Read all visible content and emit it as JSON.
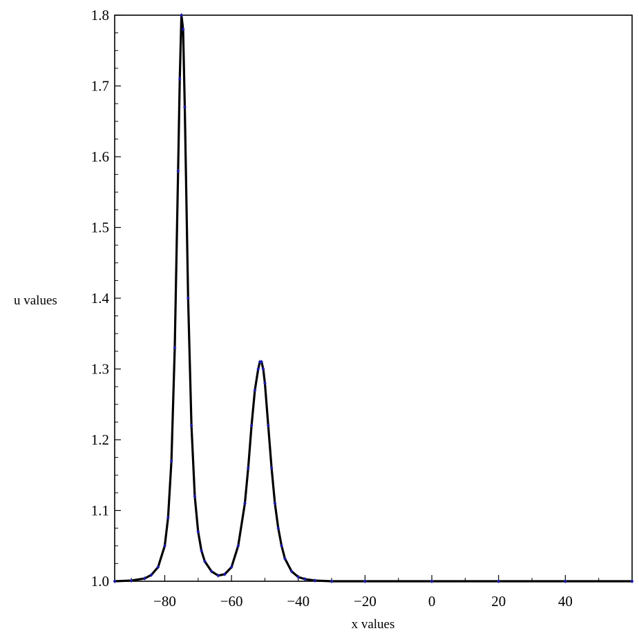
{
  "chart_data": {
    "type": "line",
    "title": "",
    "xlabel": "x values",
    "ylabel": "u values",
    "xlim": [
      -95,
      60
    ],
    "ylim": [
      1.0,
      1.8
    ],
    "x_ticks": [
      -80,
      -60,
      -40,
      -20,
      0,
      20,
      40
    ],
    "x_tick_labels": [
      "−80",
      "−60",
      "−40",
      "−20",
      "0",
      "20",
      "40"
    ],
    "y_ticks": [
      1.0,
      1.1,
      1.2,
      1.3,
      1.4,
      1.5,
      1.6,
      1.7,
      1.8
    ],
    "y_tick_labels": [
      "1.0",
      "1.1",
      "1.2",
      "1.3",
      "1.4",
      "1.5",
      "1.6",
      "1.7",
      "1.8"
    ],
    "grid": false,
    "legend": "none",
    "series": [
      {
        "style": "line",
        "color": "#000000",
        "x": [
          -95,
          -90,
          -86,
          -84,
          -82,
          -80,
          -79,
          -78,
          -77,
          -76,
          -75.5,
          -75,
          -74.5,
          -74,
          -73,
          -72,
          -71,
          -70,
          -69,
          -68,
          -66,
          -64,
          -62,
          -60,
          -58,
          -56,
          -55,
          -54,
          -53,
          -52,
          -51.5,
          -51,
          -50.5,
          -50,
          -49,
          -48,
          -47,
          -46,
          -45,
          -44,
          -42,
          -40,
          -38,
          -35,
          -30,
          -20,
          0,
          20,
          40,
          60
        ],
        "y": [
          1.0,
          1.001,
          1.004,
          1.009,
          1.02,
          1.05,
          1.09,
          1.17,
          1.33,
          1.58,
          1.71,
          1.8,
          1.78,
          1.67,
          1.4,
          1.22,
          1.12,
          1.07,
          1.043,
          1.028,
          1.014,
          1.008,
          1.01,
          1.02,
          1.05,
          1.11,
          1.16,
          1.22,
          1.27,
          1.3,
          1.31,
          1.31,
          1.3,
          1.28,
          1.22,
          1.16,
          1.11,
          1.075,
          1.05,
          1.032,
          1.014,
          1.006,
          1.003,
          1.001,
          1.0,
          1.0,
          1.0,
          1.0,
          1.0,
          1.0
        ]
      },
      {
        "style": "markers",
        "color": "#1a1aa6",
        "x": [
          -95,
          -90,
          -86,
          -84,
          -82,
          -80,
          -79,
          -78,
          -77,
          -76,
          -75.5,
          -75,
          -74.5,
          -74,
          -73,
          -72,
          -71,
          -70,
          -69,
          -68,
          -66,
          -64,
          -62,
          -60,
          -58,
          -56,
          -55,
          -54,
          -53,
          -52,
          -51.5,
          -51,
          -50.5,
          -50,
          -49,
          -48,
          -47,
          -46,
          -45,
          -44,
          -42,
          -40,
          -38,
          -35,
          -30,
          -20,
          0,
          20,
          40,
          60
        ],
        "y": [
          1.0,
          1.001,
          1.004,
          1.009,
          1.02,
          1.05,
          1.09,
          1.17,
          1.33,
          1.58,
          1.71,
          1.8,
          1.78,
          1.67,
          1.4,
          1.22,
          1.12,
          1.07,
          1.043,
          1.028,
          1.014,
          1.008,
          1.01,
          1.02,
          1.05,
          1.11,
          1.16,
          1.22,
          1.27,
          1.3,
          1.31,
          1.31,
          1.3,
          1.28,
          1.22,
          1.16,
          1.11,
          1.075,
          1.05,
          1.032,
          1.014,
          1.006,
          1.003,
          1.001,
          1.0,
          1.0,
          1.0,
          1.0,
          1.0,
          1.0
        ]
      }
    ]
  }
}
